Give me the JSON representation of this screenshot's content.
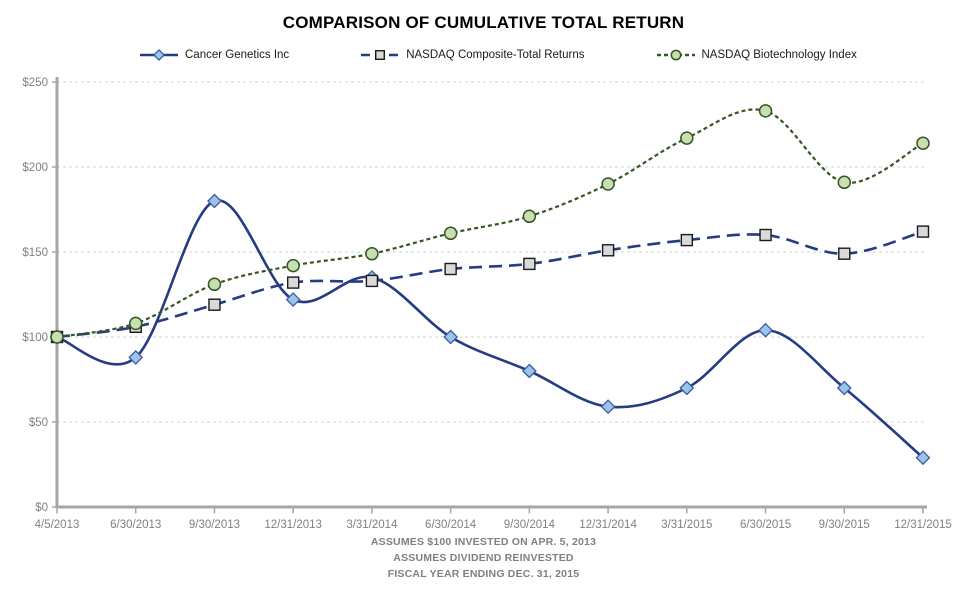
{
  "title": "COMPARISON OF CUMULATIVE TOTAL RETURN",
  "chart_data": {
    "type": "line",
    "title": "COMPARISON OF CUMULATIVE TOTAL RETURN",
    "x_labels": [
      "4/5/2013",
      "6/30/2013",
      "9/30/2013",
      "12/31/2013",
      "3/31/2014",
      "6/30/2014",
      "9/30/2014",
      "12/31/2014",
      "3/31/2015",
      "6/30/2015",
      "9/30/2015",
      "12/31/2015"
    ],
    "ylim": [
      0,
      250
    ],
    "ytick_step": 50,
    "ytick_labels": [
      "$0",
      "$50",
      "$100",
      "$150",
      "$200",
      "$250"
    ],
    "grid": "horizontal-dashed",
    "legend_position": "top",
    "smoothed_lines": true,
    "series": [
      {
        "name": "Cancer Genetics Inc",
        "line": "solid",
        "marker": "diamond",
        "line_color": "#253B82",
        "marker_fill": "#9DC3E6",
        "marker_stroke": "#3A5BA9",
        "values": [
          100,
          88,
          180,
          122,
          135,
          100,
          80,
          59,
          70,
          104,
          70,
          29
        ]
      },
      {
        "name": "NASDAQ Composite-Total Returns",
        "line": "long-dash",
        "marker": "square",
        "line_color": "#253B82",
        "marker_fill": "#D9D9D9",
        "marker_stroke": "#1A1A1A",
        "values": [
          100,
          106,
          119,
          132,
          133,
          140,
          143,
          151,
          157,
          160,
          149,
          162
        ]
      },
      {
        "name": "NASDAQ Biotechnology Index",
        "line": "short-dash",
        "marker": "circle",
        "line_color": "#375623",
        "marker_fill": "#C6E0B4",
        "marker_stroke": "#375623",
        "values": [
          100,
          108,
          131,
          142,
          149,
          161,
          171,
          190,
          217,
          233,
          191,
          214
        ]
      }
    ]
  },
  "footnotes": [
    "ASSUMES $100 INVESTED ON APR. 5, 2013",
    "ASSUMES DIVIDEND REINVESTED",
    "FISCAL YEAR ENDING DEC. 31, 2015"
  ],
  "colors": {
    "grid": "#D3D3D3",
    "axis": "#A6A6A6",
    "axis_label": "#808080",
    "title": "#000000",
    "footnote": "#808080",
    "legend_text": "#1A1A1A"
  }
}
